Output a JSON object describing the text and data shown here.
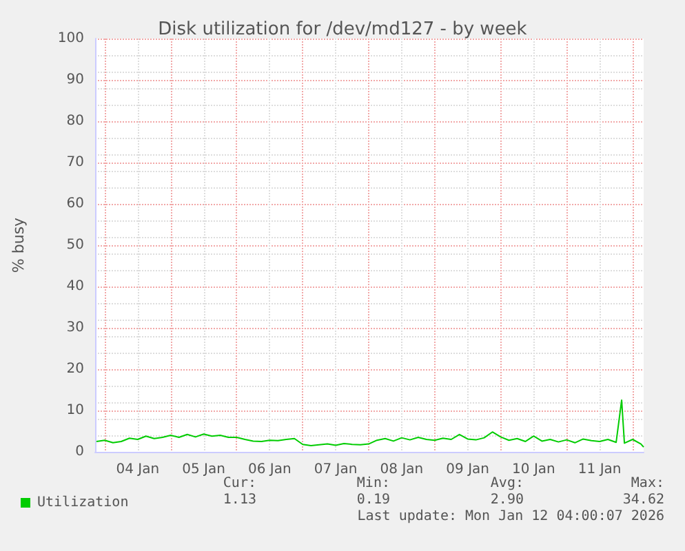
{
  "chart_data": {
    "type": "line",
    "title": "Disk utilization for /dev/md127 - by week",
    "ylabel": "% busy",
    "x": [
      "2026-01-03T21:00",
      "2026-01-04T00:00",
      "2026-01-04T03:00",
      "2026-01-04T06:00",
      "2026-01-04T09:00",
      "2026-01-04T12:00",
      "2026-01-04T15:00",
      "2026-01-04T18:00",
      "2026-01-04T21:00",
      "2026-01-05T00:00",
      "2026-01-05T03:00",
      "2026-01-05T06:00",
      "2026-01-05T09:00",
      "2026-01-05T12:00",
      "2026-01-05T15:00",
      "2026-01-05T18:00",
      "2026-01-05T21:00",
      "2026-01-06T00:00",
      "2026-01-06T03:00",
      "2026-01-06T06:00",
      "2026-01-06T09:00",
      "2026-01-06T12:00",
      "2026-01-06T15:00",
      "2026-01-06T18:00",
      "2026-01-06T21:00",
      "2026-01-07T00:00",
      "2026-01-07T03:00",
      "2026-01-07T06:00",
      "2026-01-07T09:00",
      "2026-01-07T12:00",
      "2026-01-07T15:00",
      "2026-01-07T18:00",
      "2026-01-07T21:00",
      "2026-01-08T00:00",
      "2026-01-08T03:00",
      "2026-01-08T06:00",
      "2026-01-08T09:00",
      "2026-01-08T12:00",
      "2026-01-08T15:00",
      "2026-01-08T18:00",
      "2026-01-08T21:00",
      "2026-01-09T00:00",
      "2026-01-09T03:00",
      "2026-01-09T06:00",
      "2026-01-09T09:00",
      "2026-01-09T12:00",
      "2026-01-09T15:00",
      "2026-01-09T18:00",
      "2026-01-09T21:00",
      "2026-01-10T00:00",
      "2026-01-10T03:00",
      "2026-01-10T06:00",
      "2026-01-10T09:00",
      "2026-01-10T12:00",
      "2026-01-10T15:00",
      "2026-01-10T18:00",
      "2026-01-10T21:00",
      "2026-01-11T00:00",
      "2026-01-11T03:00",
      "2026-01-11T06:00",
      "2026-01-11T09:00",
      "2026-01-11T12:00",
      "2026-01-11T15:00",
      "2026-01-11T18:00",
      "2026-01-11T20:00",
      "2026-01-11T21:00",
      "2026-01-12T00:00",
      "2026-01-12T03:00",
      "2026-01-12T04:00"
    ],
    "series": [
      {
        "name": "Utilization",
        "color": "#00cc00",
        "values": [
          2.5,
          2.8,
          2.2,
          2.5,
          3.3,
          3.0,
          3.8,
          3.2,
          3.5,
          4.0,
          3.5,
          4.2,
          3.6,
          4.3,
          3.8,
          4.0,
          3.5,
          3.5,
          3.0,
          2.6,
          2.5,
          2.8,
          2.7,
          3.0,
          3.2,
          1.8,
          1.5,
          1.7,
          1.9,
          1.6,
          2.0,
          1.8,
          1.7,
          1.9,
          2.8,
          3.2,
          2.6,
          3.4,
          2.9,
          3.5,
          3.0,
          2.8,
          3.3,
          3.0,
          4.2,
          3.1,
          2.9,
          3.4,
          4.8,
          3.6,
          2.8,
          3.2,
          2.5,
          3.8,
          2.6,
          3.0,
          2.4,
          2.9,
          2.2,
          3.1,
          2.7,
          2.5,
          3.0,
          2.3,
          12.5,
          2.1,
          3.0,
          1.9,
          1.13
        ]
      }
    ],
    "xlim": [
      "2026-01-03T20:30",
      "2026-01-12T04:00"
    ],
    "xticks": [
      {
        "value": "2026-01-04T00:00",
        "label": null
      },
      {
        "value": "2026-01-04T12:00",
        "label": "04 Jan"
      },
      {
        "value": "2026-01-05T00:00",
        "label": null
      },
      {
        "value": "2026-01-05T12:00",
        "label": "05 Jan"
      },
      {
        "value": "2026-01-06T00:00",
        "label": null
      },
      {
        "value": "2026-01-06T12:00",
        "label": "06 Jan"
      },
      {
        "value": "2026-01-07T00:00",
        "label": null
      },
      {
        "value": "2026-01-07T12:00",
        "label": "07 Jan"
      },
      {
        "value": "2026-01-08T00:00",
        "label": null
      },
      {
        "value": "2026-01-08T12:00",
        "label": "08 Jan"
      },
      {
        "value": "2026-01-09T00:00",
        "label": null
      },
      {
        "value": "2026-01-09T12:00",
        "label": "09 Jan"
      },
      {
        "value": "2026-01-10T00:00",
        "label": null
      },
      {
        "value": "2026-01-10T12:00",
        "label": "10 Jan"
      },
      {
        "value": "2026-01-11T00:00",
        "label": null
      },
      {
        "value": "2026-01-11T12:00",
        "label": "11 Jan"
      },
      {
        "value": "2026-01-12T00:00",
        "label": null
      }
    ],
    "ylim": [
      0,
      100
    ],
    "yticks": [
      0,
      10,
      20,
      30,
      40,
      50,
      60,
      70,
      80,
      90,
      100
    ],
    "grid": true,
    "legend": "bottom left",
    "marker": "none",
    "line_style": "solid",
    "annotations": [
      "Cur:",
      "1.13",
      "Min:",
      "0.19",
      "Avg:",
      "2.90",
      "Max:",
      "34.62",
      "Last update: Mon Jan 12 04:00:07 2026"
    ]
  }
}
